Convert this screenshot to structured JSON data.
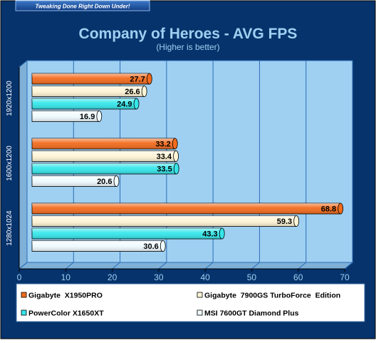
{
  "banner": "Tweaking Done Right Down Under!",
  "colors": {
    "background": "#07336c",
    "plot_bg": "#9fd0f2",
    "grid": "#2e6db6",
    "title": "#9fd0f2"
  },
  "chart_data": {
    "type": "bar",
    "orientation": "horizontal",
    "title": "Company of Heroes - AVG FPS",
    "subtitle": "(Higher is better)",
    "categories": [
      "1920x1200",
      "1600x1200",
      "1280x1024"
    ],
    "series": [
      {
        "name": "Gigabyte  X1950PRO",
        "color": "#f26b1d",
        "values": [
          27.7,
          33.2,
          68.8
        ]
      },
      {
        "name": "Gigabyte  7900GS TurboForce  Edition",
        "color": "#fff5d6",
        "values": [
          26.6,
          33.4,
          59.3
        ]
      },
      {
        "name": "PowerColor X1650XT",
        "color": "#35e6ea",
        "values": [
          24.9,
          33.5,
          43.3
        ]
      },
      {
        "name": "MSI 7600GT Diamond Plus",
        "color": "#f0fbff",
        "values": [
          16.9,
          20.6,
          30.6
        ]
      }
    ],
    "x_ticks": [
      "0",
      "10",
      "20",
      "30",
      "40",
      "50",
      "60",
      "70"
    ],
    "xlim": [
      0,
      70
    ],
    "grid": true,
    "legend_position": "bottom"
  }
}
